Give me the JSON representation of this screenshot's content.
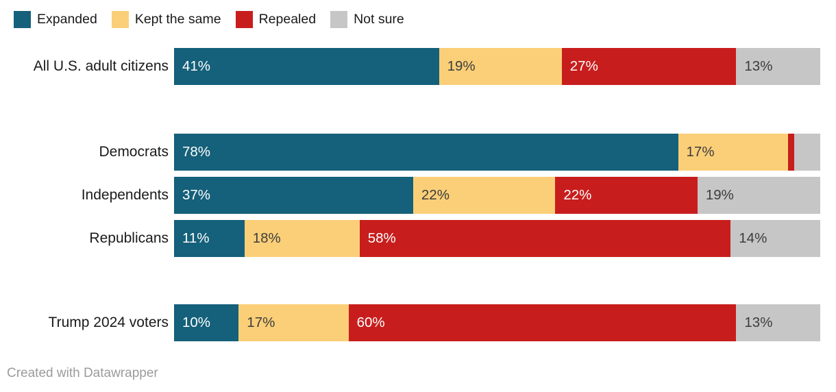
{
  "legend": {
    "items": [
      {
        "label": "Expanded",
        "color": "#15607a"
      },
      {
        "label": "Kept the same",
        "color": "#fbcf78"
      },
      {
        "label": "Repealed",
        "color": "#c71e1d"
      },
      {
        "label": "Not sure",
        "color": "#c6c6c6"
      }
    ]
  },
  "chart_data": {
    "type": "bar",
    "orientation": "horizontal",
    "stacked": true,
    "categories": [
      "All U.S. adult citizens",
      "Democrats",
      "Independents",
      "Republicans",
      "Trump 2024 voters"
    ],
    "series": [
      {
        "name": "Expanded",
        "color": "#15607a",
        "label_color": "#ffffff",
        "values": [
          41,
          78,
          37,
          11,
          10
        ]
      },
      {
        "name": "Kept the same",
        "color": "#fbcf78",
        "label_color": "#3c3c3c",
        "values": [
          19,
          17,
          22,
          18,
          17
        ]
      },
      {
        "name": "Repealed",
        "color": "#c71e1d",
        "label_color": "#ffffff",
        "values": [
          27,
          1,
          22,
          58,
          60
        ]
      },
      {
        "name": "Not sure",
        "color": "#c6c6c6",
        "label_color": "#3c3c3c",
        "values": [
          13,
          4,
          19,
          14,
          13
        ]
      }
    ],
    "value_suffix": "%",
    "xlim": [
      0,
      100
    ],
    "show_label_min_value": 8,
    "legend_position": "top-left",
    "grid": false
  },
  "footer": {
    "credit": "Created with Datawrapper"
  }
}
